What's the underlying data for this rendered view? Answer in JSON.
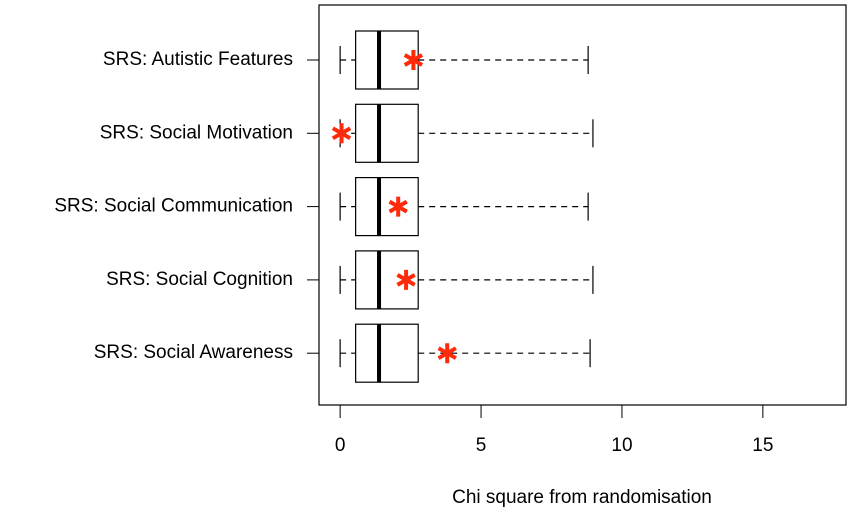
{
  "chart_data": {
    "type": "boxplot",
    "categories": [
      "SRS: Autistic Features",
      "SRS: Social Motivation",
      "SRS: Social Communication",
      "SRS: Social Cognition",
      "SRS: Social Awareness"
    ],
    "min": [
      0,
      0,
      0,
      0,
      0
    ],
    "q1": [
      0.55,
      0.55,
      0.55,
      0.55,
      0.55
    ],
    "median": [
      1.38,
      1.38,
      1.38,
      1.38,
      1.38
    ],
    "q3": [
      2.77,
      2.77,
      2.77,
      2.77,
      2.77
    ],
    "max": [
      8.8,
      8.97,
      8.8,
      8.97,
      8.87
    ],
    "observed": [
      2.6,
      0.05,
      2.06,
      2.34,
      3.8
    ],
    "observed_color": "#ff2a0a",
    "xlabel": "Chi square from randomisation",
    "xlim": [
      -0.75,
      17.95
    ],
    "xticks": [
      0,
      5,
      10,
      15
    ]
  }
}
